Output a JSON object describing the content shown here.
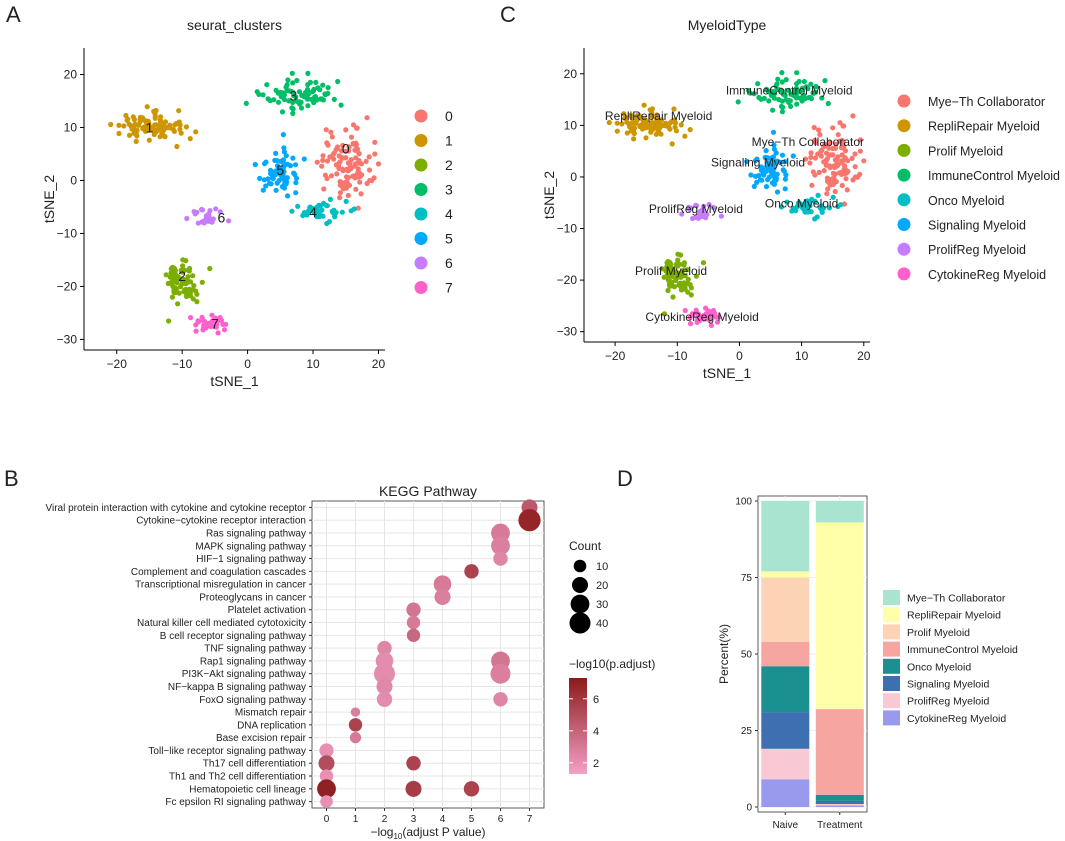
{
  "panels": {
    "A": {
      "letter": "A"
    },
    "B": {
      "letter": "B"
    },
    "C": {
      "letter": "C"
    },
    "D": {
      "letter": "D"
    }
  },
  "chart_data": [
    {
      "id": "A",
      "type": "scatter",
      "title": "seurat_clusters",
      "xlabel": "tSNE_1",
      "ylabel": "tSNE_2",
      "xlim": [
        -25,
        21
      ],
      "ylim": [
        -32,
        25
      ],
      "xticks": [
        -20,
        -10,
        0,
        10,
        20
      ],
      "yticks": [
        -30,
        -20,
        -10,
        0,
        10,
        20
      ],
      "legend_position": "right",
      "clusters": [
        {
          "name": "0",
          "color": "#F8766D",
          "center": [
            15,
            3
          ],
          "spread": [
            3.2,
            5.5
          ],
          "n": 110
        },
        {
          "name": "1",
          "color": "#CD9600",
          "center": [
            -15,
            10
          ],
          "spread": [
            4.5,
            2.2
          ],
          "n": 90
        },
        {
          "name": "2",
          "color": "#7CAE00",
          "center": [
            -10,
            -19
          ],
          "spread": [
            2.3,
            3.6
          ],
          "n": 75
        },
        {
          "name": "3",
          "color": "#00BE67",
          "center": [
            8,
            16
          ],
          "spread": [
            5,
            2.4
          ],
          "n": 80
        },
        {
          "name": "4",
          "color": "#00BFC4",
          "center": [
            11,
            -6
          ],
          "spread": [
            3.2,
            1.6
          ],
          "n": 45
        },
        {
          "name": "5",
          "color": "#00A9FF",
          "center": [
            5,
            2
          ],
          "spread": [
            2.8,
            3.8
          ],
          "n": 65
        },
        {
          "name": "6",
          "color": "#C77CFF",
          "center": [
            -6,
            -7
          ],
          "spread": [
            2.2,
            1.5
          ],
          "n": 28
        },
        {
          "name": "7",
          "color": "#FF61CC",
          "center": [
            -6,
            -27
          ],
          "spread": [
            2.2,
            1.2
          ],
          "n": 38
        }
      ],
      "cluster_labels": [
        {
          "text": "0",
          "x": 15,
          "y": 6
        },
        {
          "text": "1",
          "x": -15,
          "y": 10
        },
        {
          "text": "2",
          "x": -10,
          "y": -18
        },
        {
          "text": "3",
          "x": 7,
          "y": 16
        },
        {
          "text": "4",
          "x": 10,
          "y": -6
        },
        {
          "text": "5",
          "x": 5,
          "y": 2
        },
        {
          "text": "6",
          "x": -4,
          "y": -7
        },
        {
          "text": "7",
          "x": -5,
          "y": -27
        }
      ]
    },
    {
      "id": "C",
      "type": "scatter",
      "title": "MyeloidType",
      "xlabel": "tSNE_1",
      "ylabel": "tSNE_2",
      "xlim": [
        -25,
        21
      ],
      "ylim": [
        -32,
        25
      ],
      "xticks": [
        -20,
        -10,
        0,
        10,
        20
      ],
      "yticks": [
        -30,
        -20,
        -10,
        0,
        10,
        20
      ],
      "legend_position": "right",
      "clusters": [
        {
          "name": "Mye−Th Collaborator",
          "color": "#F8766D",
          "center": [
            15,
            3
          ],
          "spread": [
            3.2,
            5.5
          ],
          "n": 110
        },
        {
          "name": "RepliRepair Myeloid",
          "color": "#CD9600",
          "center": [
            -15,
            10
          ],
          "spread": [
            4.5,
            2.2
          ],
          "n": 90
        },
        {
          "name": "Prolif Myeloid",
          "color": "#7CAE00",
          "center": [
            -10,
            -19
          ],
          "spread": [
            2.3,
            3.6
          ],
          "n": 75
        },
        {
          "name": "ImmuneControl Myeloid",
          "color": "#00BE67",
          "center": [
            8,
            16
          ],
          "spread": [
            5,
            2.4
          ],
          "n": 80
        },
        {
          "name": "Onco Myeloid",
          "color": "#00BFC4",
          "center": [
            11,
            -6
          ],
          "spread": [
            3.2,
            1.6
          ],
          "n": 45
        },
        {
          "name": "Signaling Myeloid",
          "color": "#00A9FF",
          "center": [
            5,
            2
          ],
          "spread": [
            2.8,
            3.8
          ],
          "n": 65
        },
        {
          "name": "ProlifReg Myeloid",
          "color": "#C77CFF",
          "center": [
            -6,
            -7
          ],
          "spread": [
            2.2,
            1.5
          ],
          "n": 28
        },
        {
          "name": "CytokineReg Myeloid",
          "color": "#FF61CC",
          "center": [
            -6,
            -27
          ],
          "spread": [
            2.2,
            1.2
          ],
          "n": 38
        }
      ],
      "cluster_labels": [
        {
          "text": "ImmuneControl Myeloid",
          "x": 8,
          "y": 17
        },
        {
          "text": "RepliRepair Myeloid",
          "x": -13,
          "y": 12
        },
        {
          "text": "Mye−Th Collaborator",
          "x": 11,
          "y": 7
        },
        {
          "text": "Signaling Myeloid",
          "x": 3,
          "y": 3
        },
        {
          "text": "ProlifReg Myeloid",
          "x": -7,
          "y": -6
        },
        {
          "text": "Onco Myeloid",
          "x": 10,
          "y": -5
        },
        {
          "text": "Prolif Myeloid",
          "x": -11,
          "y": -18
        },
        {
          "text": "CytokineReg Myeloid",
          "x": -6,
          "y": -27
        }
      ]
    },
    {
      "id": "B",
      "type": "scatter",
      "subtype": "dotplot",
      "title": "KEGG Pathway",
      "xlabel_prefix": "−log",
      "xlabel_sub": "10",
      "xlabel_suffix": "(adjust P value)",
      "xlim": [
        -0.5,
        7.5
      ],
      "xticks": [
        0,
        1,
        2,
        3,
        4,
        5,
        6,
        7
      ],
      "pathways": [
        "Viral protein interaction with cytokine and cytokine receptor",
        "Cytokine−cytokine receptor interaction",
        "Ras signaling pathway",
        "MAPK signaling pathway",
        "HIF−1 signaling pathway",
        "Complement and coagulation cascades",
        "Transcriptional misregulation in cancer",
        "Proteoglycans in cancer",
        "Platelet activation",
        "Natural killer cell mediated cytotoxicity",
        "B cell receptor signaling pathway",
        "TNF signaling pathway",
        "Rap1 signaling pathway",
        "PI3K−Akt signaling pathway",
        "NF−kappa B signaling pathway",
        "FoxO signaling pathway",
        "Mismatch repair",
        "DNA replication",
        "Base excision repair",
        "Toll−like receptor signaling pathway",
        "Th17 cell differentiation",
        "Th1 and Th2 cell differentiation",
        "Hematopoietic cell lineage",
        "Fc epsilon RI signaling pathway"
      ],
      "points": [
        {
          "p": 0,
          "x": 7,
          "count": 20,
          "padj": 4.5
        },
        {
          "p": 1,
          "x": 7,
          "count": 45,
          "padj": 6.8
        },
        {
          "p": 2,
          "x": 6,
          "count": 30,
          "padj": 3.0
        },
        {
          "p": 3,
          "x": 6,
          "count": 30,
          "padj": 2.8
        },
        {
          "p": 4,
          "x": 6,
          "count": 15,
          "padj": 2.5
        },
        {
          "p": 5,
          "x": 5,
          "count": 15,
          "padj": 5.5
        },
        {
          "p": 6,
          "x": 4,
          "count": 25,
          "padj": 3.0
        },
        {
          "p": 7,
          "x": 4,
          "count": 20,
          "padj": 2.8
        },
        {
          "p": 8,
          "x": 3,
          "count": 15,
          "padj": 3.2
        },
        {
          "p": 9,
          "x": 3,
          "count": 12,
          "padj": 3.0
        },
        {
          "p": 10,
          "x": 3,
          "count": 12,
          "padj": 3.8
        },
        {
          "p": 11,
          "x": 2,
          "count": 15,
          "padj": 2.5
        },
        {
          "p": 12,
          "x": 2,
          "count": 25,
          "padj": 2.2
        },
        {
          "p": 12,
          "x": 6,
          "count": 30,
          "padj": 3.2
        },
        {
          "p": 13,
          "x": 2,
          "count": 40,
          "padj": 2.2
        },
        {
          "p": 13,
          "x": 6,
          "count": 35,
          "padj": 2.8
        },
        {
          "p": 14,
          "x": 2,
          "count": 20,
          "padj": 2.4
        },
        {
          "p": 15,
          "x": 2,
          "count": 18,
          "padj": 2.2
        },
        {
          "p": 15,
          "x": 6,
          "count": 15,
          "padj": 2.5
        },
        {
          "p": 16,
          "x": 1,
          "count": 4,
          "padj": 2.8
        },
        {
          "p": 17,
          "x": 1,
          "count": 12,
          "padj": 5.5
        },
        {
          "p": 18,
          "x": 1,
          "count": 7,
          "padj": 3.0
        },
        {
          "p": 19,
          "x": 0,
          "count": 14,
          "padj": 2.0
        },
        {
          "p": 20,
          "x": 0,
          "count": 20,
          "padj": 5.0
        },
        {
          "p": 20,
          "x": 3,
          "count": 15,
          "padj": 5.5
        },
        {
          "p": 21,
          "x": 0,
          "count": 12,
          "padj": 2.0
        },
        {
          "p": 22,
          "x": 0,
          "count": 30,
          "padj": 7.0
        },
        {
          "p": 22,
          "x": 3,
          "count": 20,
          "padj": 5.8
        },
        {
          "p": 22,
          "x": 5,
          "count": 18,
          "padj": 5.5
        },
        {
          "p": 23,
          "x": 0,
          "count": 10,
          "padj": 2.0
        }
      ],
      "size_legend": {
        "title": "Count",
        "values": [
          10,
          20,
          30,
          40
        ]
      },
      "color_legend": {
        "title": "−log10(p.adjust)",
        "ticks": [
          2,
          4,
          6
        ],
        "range": [
          1.3,
          7.3
        ],
        "low_color": "#F4A0C8",
        "high_color": "#8B1A1A"
      }
    },
    {
      "id": "D",
      "type": "bar",
      "subtype": "stacked",
      "xlabel": "",
      "ylabel": "Percent(%)",
      "ylim": [
        0,
        100
      ],
      "yticks": [
        0,
        25,
        50,
        75,
        100
      ],
      "categories": [
        "Naive",
        "Treatment"
      ],
      "series": [
        {
          "name": "CytokineReg Myeloid",
          "color": "#9999EE",
          "values": [
            9,
            0.5
          ]
        },
        {
          "name": "ProlifReg Myeloid",
          "color": "#F8C8D4",
          "values": [
            10,
            0.5
          ]
        },
        {
          "name": "Signaling Myeloid",
          "color": "#3E6FB0",
          "values": [
            12,
            1
          ]
        },
        {
          "name": "Onco Myeloid",
          "color": "#1A9090",
          "values": [
            15,
            2
          ]
        },
        {
          "name": "ImmuneControl Myeloid",
          "color": "#F7A5A0",
          "values": [
            8,
            28
          ]
        },
        {
          "name": "Prolif Myeloid",
          "color": "#FDD3B5",
          "values": [
            21,
            0
          ]
        },
        {
          "name": "RepliRepair Myeloid",
          "color": "#FFFFAA",
          "values": [
            2,
            61
          ]
        },
        {
          "name": "Mye−Th Collaborator",
          "color": "#A8E4D0",
          "values": [
            23,
            7
          ]
        }
      ],
      "legend_order": [
        "Mye−Th Collaborator",
        "RepliRepair Myeloid",
        "Prolif Myeloid",
        "ImmuneControl Myeloid",
        "Onco Myeloid",
        "Signaling Myeloid",
        "ProlifReg Myeloid",
        "CytokineReg Myeloid"
      ]
    }
  ]
}
